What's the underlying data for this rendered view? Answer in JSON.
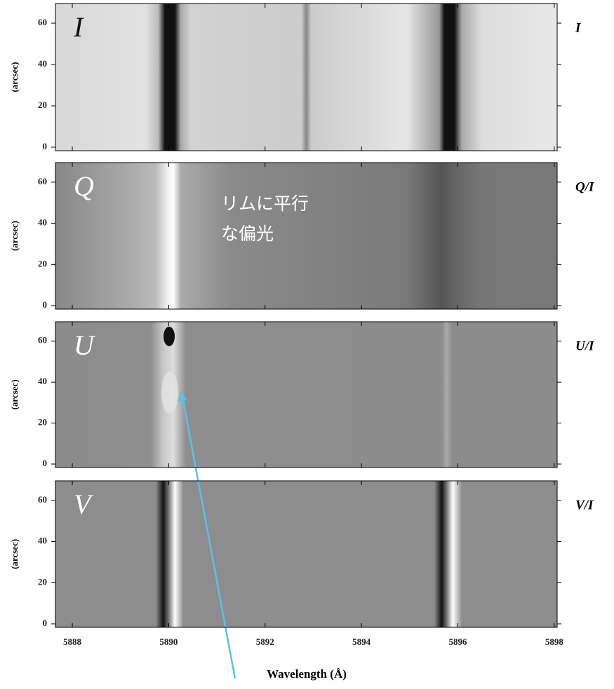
{
  "chart_data": {
    "type": "spectrogram",
    "xlim": [
      5887.65,
      5898.06
    ],
    "xticks": [
      5888,
      5890,
      5892,
      5894,
      5896,
      5898
    ],
    "xlabel": "Wavelength (Å)",
    "ylabel": "(arcsec)",
    "annotation": [
      "リムに平行",
      "な偏光"
    ],
    "panels": [
      {
        "label": "I",
        "right_label": "I",
        "ylim": [
          -1.7,
          69.5
        ],
        "yticks": [
          0,
          20,
          40,
          60
        ]
      },
      {
        "label": "Q",
        "right_label": "Q/I",
        "ylim": [
          -1.7,
          69.5
        ],
        "yticks": [
          0,
          20,
          40,
          60
        ]
      },
      {
        "label": "U",
        "right_label": "U/I",
        "ylim": [
          -1.7,
          69.5
        ],
        "yticks": [
          0,
          20,
          40,
          60
        ]
      },
      {
        "label": "V",
        "right_label": "V/I",
        "ylim": [
          -1.7,
          69.5
        ],
        "yticks": [
          0,
          20,
          40,
          60
        ]
      }
    ]
  }
}
